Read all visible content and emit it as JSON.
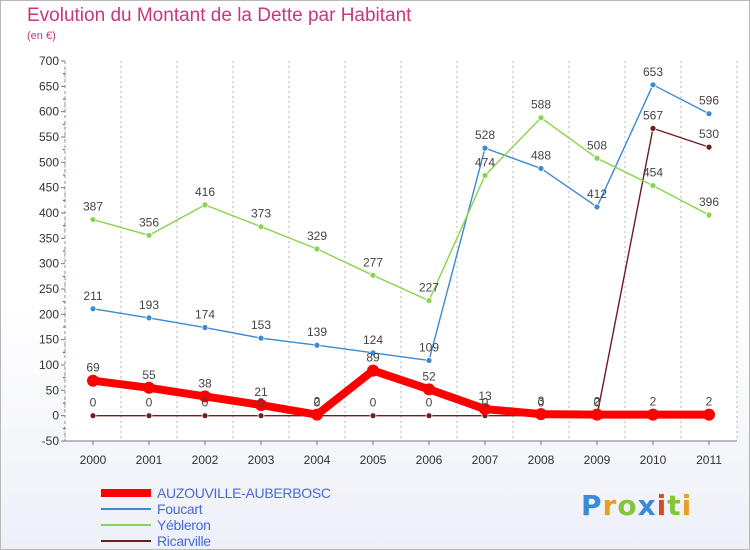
{
  "title": "Evolution du Montant de la Dette par Habitant",
  "subtitle": "(en €)",
  "logo": "Proxiti",
  "chart_data": {
    "type": "line",
    "title": "Evolution du Montant de la Dette par Habitant",
    "subtitle": "(en €)",
    "xlabel": "",
    "ylabel": "",
    "x": [
      "2000",
      "2001",
      "2002",
      "2003",
      "2004",
      "2005",
      "2006",
      "2007",
      "2008",
      "2009",
      "2010",
      "2011"
    ],
    "ylim": [
      -50,
      700
    ],
    "yticks": [
      -50,
      0,
      50,
      100,
      150,
      200,
      250,
      300,
      350,
      400,
      450,
      500,
      550,
      600,
      650,
      700
    ],
    "grid": "vertical",
    "legend_position": "bottom-left",
    "series": [
      {
        "name": "AUZOUVILLE-AUBERBOSC",
        "color": "#ff0000",
        "values": [
          69,
          55,
          38,
          21,
          2,
          89,
          52,
          13,
          3,
          2,
          2,
          2
        ]
      },
      {
        "name": "Foucart",
        "color": "#3a8ad4",
        "values": [
          211,
          193,
          174,
          153,
          139,
          124,
          109,
          528,
          488,
          412,
          653,
          596
        ]
      },
      {
        "name": "Yébleron",
        "color": "#88d44a",
        "values": [
          387,
          356,
          416,
          373,
          329,
          277,
          227,
          474,
          588,
          508,
          454,
          396
        ]
      },
      {
        "name": "Ricarville",
        "color": "#6e1c1c",
        "values": [
          0,
          0,
          0,
          0,
          0,
          0,
          0,
          0,
          0,
          0,
          567,
          530
        ]
      }
    ]
  }
}
